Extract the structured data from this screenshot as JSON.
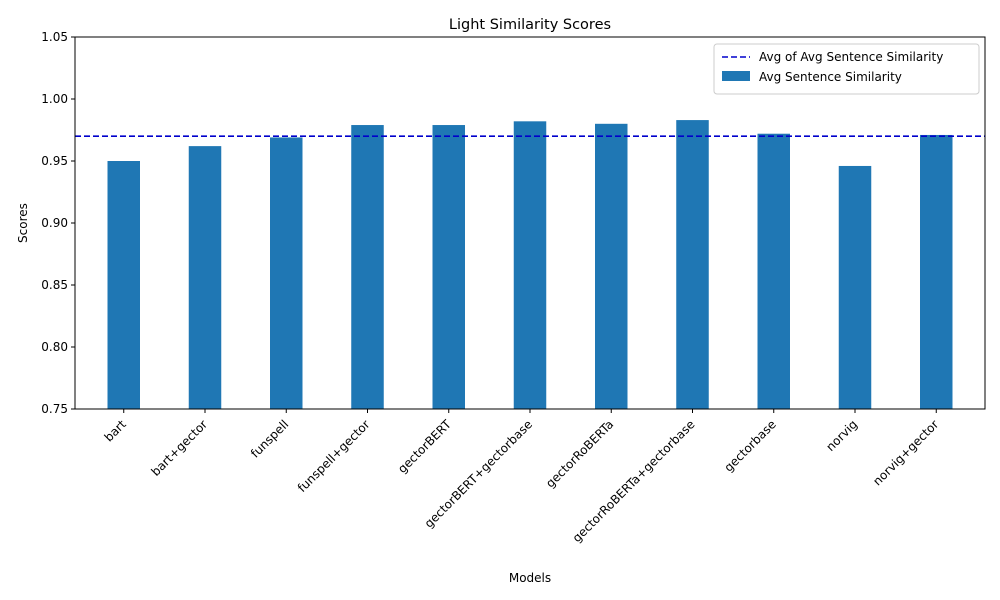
{
  "chart_data": {
    "type": "bar",
    "title": "Light Similarity Scores",
    "xlabel": "Models",
    "ylabel": "Scores",
    "categories": [
      "bart",
      "bart+gector",
      "funspell",
      "funspell+gector",
      "gectorBERT",
      "gectorBERT+gectorbase",
      "gectorRoBERTa",
      "gectorRoBERTa+gectorbase",
      "gectorbase",
      "norvig",
      "norvig+gector"
    ],
    "series": [
      {
        "name": "Avg Sentence Similarity",
        "values": [
          0.95,
          0.962,
          0.969,
          0.979,
          0.979,
          0.982,
          0.98,
          0.983,
          0.972,
          0.946,
          0.971
        ]
      }
    ],
    "reference_line": {
      "name": "Avg of Avg Sentence Similarity",
      "value": 0.97,
      "style": "dashed",
      "color": "#0000cc"
    },
    "ylim": [
      0.75,
      1.05
    ],
    "yticks": [
      0.75,
      0.8,
      0.85,
      0.9,
      0.95,
      1.0,
      1.05
    ],
    "xtick_rotation": 45,
    "bar_color": "#1f77b4",
    "grid": false,
    "legend_position": "top-right"
  }
}
